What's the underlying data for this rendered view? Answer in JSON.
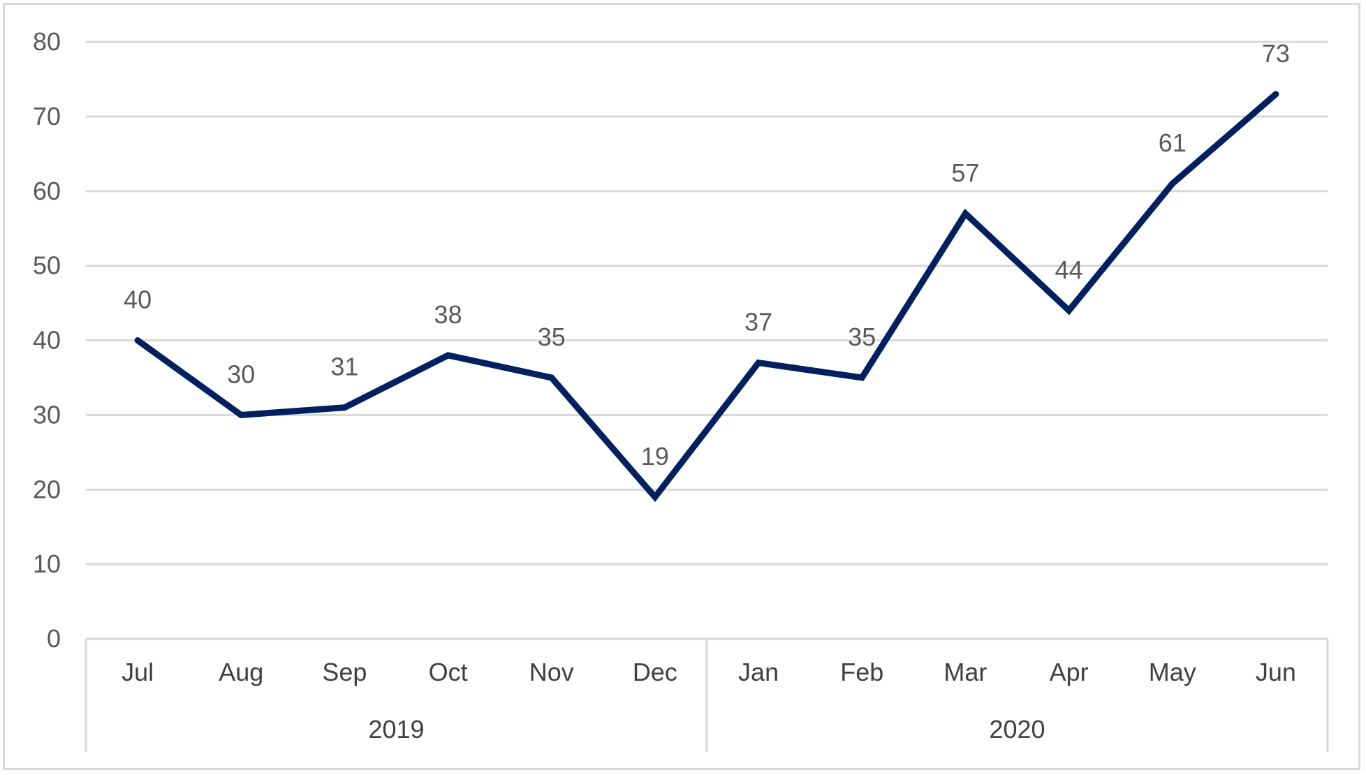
{
  "chart_data": {
    "type": "line",
    "x": [
      "Jul",
      "Aug",
      "Sep",
      "Oct",
      "Nov",
      "Dec",
      "Jan",
      "Feb",
      "Mar",
      "Apr",
      "May",
      "Jun"
    ],
    "groups": [
      {
        "label": "2019",
        "span": 6
      },
      {
        "label": "2020",
        "span": 6
      }
    ],
    "series": [
      {
        "values": [
          40,
          30,
          31,
          38,
          35,
          19,
          37,
          35,
          57,
          44,
          61,
          73
        ]
      }
    ],
    "ylim": [
      0,
      80
    ],
    "yticks": [
      0,
      10,
      20,
      30,
      40,
      50,
      60,
      70,
      80
    ],
    "grid": true,
    "data_labels": true,
    "colors": {
      "line": "#002060",
      "grid": "#d9d9d9",
      "axis": "#d9d9d9"
    }
  }
}
